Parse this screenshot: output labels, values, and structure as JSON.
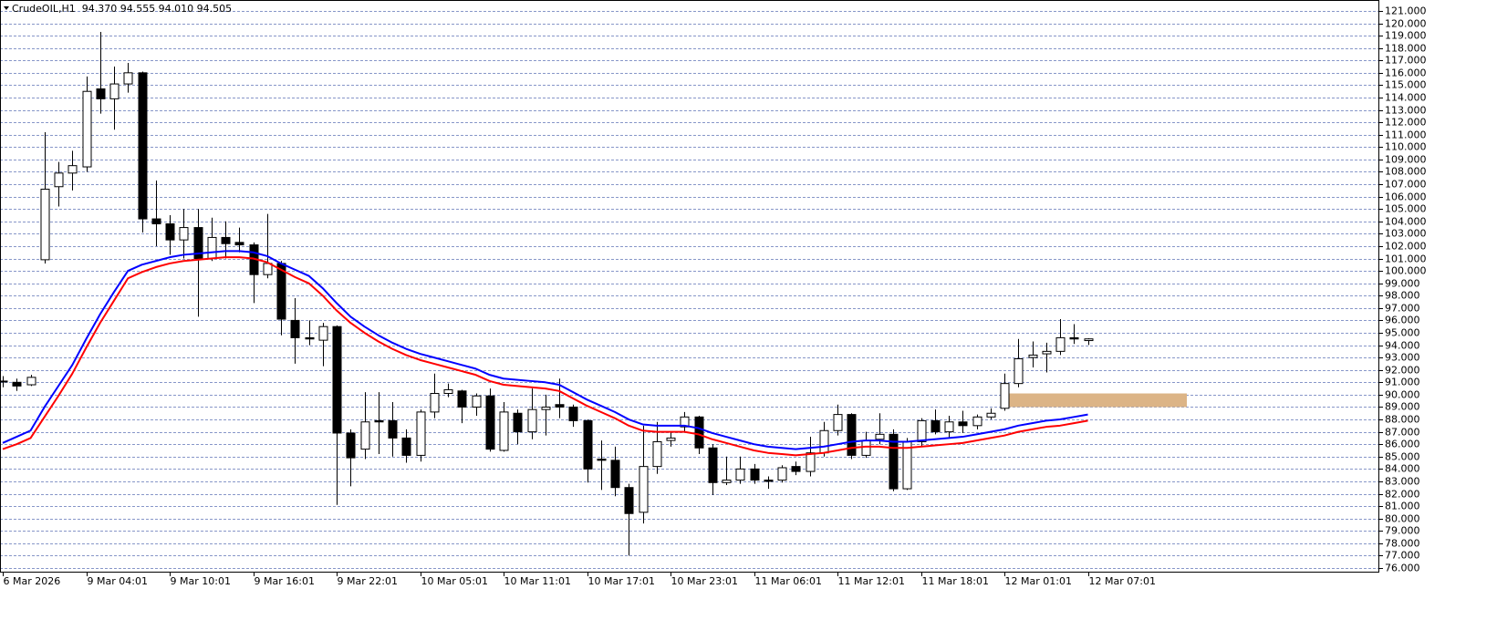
{
  "chart_data": {
    "type": "candlestick",
    "title": "CrudeOIL,H1  94.370 94.555 94.010 94.505",
    "categories": [
      "6 Mar 2026",
      null,
      null,
      null,
      null,
      null,
      "9 Mar 04:01",
      null,
      null,
      null,
      null,
      null,
      "9 Mar 10:01",
      null,
      null,
      null,
      null,
      null,
      "9 Mar 16:01",
      null,
      null,
      null,
      null,
      null,
      "9 Mar 22:01",
      null,
      null,
      null,
      null,
      null,
      "10 Mar 05:01",
      null,
      null,
      null,
      null,
      null,
      "10 Mar 11:01",
      null,
      null,
      null,
      null,
      null,
      "10 Mar 17:01",
      null,
      null,
      null,
      null,
      null,
      "10 Mar 23:01",
      null,
      null,
      null,
      null,
      null,
      "11 Mar 06:01",
      null,
      null,
      null,
      null,
      null,
      "11 Mar 12:01",
      null,
      null,
      null,
      null,
      null,
      "11 Mar 18:01",
      null,
      null,
      null,
      null,
      null,
      "12 Mar 01:01",
      null,
      null,
      null,
      null,
      null,
      "12 Mar 07:01"
    ],
    "open": [
      91.1,
      91.0,
      90.8,
      100.9,
      106.8,
      107.9,
      108.4,
      114.7,
      113.9,
      115.1,
      116.0,
      104.2,
      103.8,
      102.5,
      103.5,
      101.0,
      102.7,
      102.3,
      102.1,
      99.7,
      100.6,
      96.0,
      94.6,
      94.4,
      95.5,
      86.9,
      85.6,
      87.9,
      87.9,
      86.5,
      85.1,
      88.6,
      90.1,
      90.3,
      89.0,
      89.9,
      85.5,
      88.5,
      87.0,
      88.8,
      89.2,
      89.0,
      87.9,
      84.8,
      84.7,
      82.5,
      80.5,
      84.2,
      86.3,
      87.4,
      88.2,
      85.7,
      82.9,
      83.1,
      84.0,
      83.1,
      83.1,
      84.2,
      83.8,
      85.3,
      87.1,
      88.4,
      85.1,
      86.4,
      86.8,
      82.4,
      86.2,
      87.9,
      87.0,
      87.8,
      87.5,
      88.2,
      88.9,
      90.9,
      93.0,
      93.3,
      93.5,
      94.6,
      94.37
    ],
    "high": [
      91.5,
      91.3,
      91.6,
      111.2,
      108.8,
      109.7,
      115.7,
      119.3,
      116.5,
      116.8,
      116.1,
      107.3,
      104.5,
      105.0,
      105.0,
      104.3,
      104.0,
      103.5,
      102.3,
      104.6,
      100.8,
      97.8,
      96.0,
      95.8,
      95.6,
      87.2,
      90.2,
      90.2,
      89.4,
      87.2,
      88.8,
      91.7,
      90.9,
      90.4,
      90.1,
      90.5,
      89.4,
      88.8,
      90.5,
      90.0,
      91.3,
      89.2,
      88.0,
      86.3,
      85.8,
      82.8,
      87.5,
      87.8,
      87.0,
      88.6,
      88.3,
      86.0,
      85.0,
      85.0,
      84.4,
      83.4,
      84.3,
      84.6,
      86.6,
      87.8,
      89.2,
      88.5,
      87.0,
      88.5,
      87.2,
      86.5,
      88.1,
      88.8,
      88.3,
      88.7,
      88.4,
      88.9,
      91.7,
      94.5,
      94.3,
      94.2,
      96.1,
      95.7,
      94.555
    ],
    "low": [
      90.6,
      90.3,
      90.7,
      100.6,
      105.2,
      106.5,
      108.0,
      112.7,
      111.4,
      114.4,
      103.1,
      102.0,
      101.3,
      101.0,
      96.3,
      100.8,
      101.0,
      101.5,
      97.4,
      99.4,
      94.8,
      92.5,
      94.0,
      92.3,
      81.1,
      82.6,
      84.8,
      85.2,
      85.0,
      84.5,
      84.6,
      88.1,
      89.8,
      87.7,
      88.3,
      85.4,
      85.4,
      86.0,
      86.4,
      86.7,
      88.1,
      87.4,
      82.9,
      82.3,
      81.8,
      77.0,
      79.6,
      83.6,
      85.8,
      87.0,
      85.2,
      81.9,
      82.7,
      82.8,
      82.8,
      82.4,
      82.9,
      83.5,
      83.4,
      85.0,
      86.7,
      84.8,
      84.9,
      86.0,
      82.2,
      82.3,
      85.8,
      86.8,
      86.5,
      86.9,
      87.2,
      88.0,
      88.7,
      90.6,
      92.2,
      91.8,
      93.2,
      94.1,
      94.01
    ],
    "close": [
      91.1,
      90.7,
      91.4,
      106.6,
      107.9,
      108.5,
      114.5,
      113.9,
      115.1,
      116.0,
      104.2,
      103.8,
      102.5,
      103.5,
      101.0,
      102.7,
      102.2,
      102.1,
      99.7,
      100.6,
      96.1,
      94.6,
      94.5,
      95.5,
      86.9,
      84.9,
      87.8,
      87.8,
      86.5,
      85.1,
      88.6,
      90.1,
      90.4,
      89.0,
      89.9,
      85.6,
      88.6,
      87.0,
      88.8,
      89.0,
      89.0,
      87.9,
      84.0,
      84.7,
      82.5,
      80.4,
      84.2,
      86.2,
      86.5,
      88.2,
      85.7,
      82.9,
      83.1,
      84.0,
      83.1,
      83.0,
      84.1,
      83.8,
      85.3,
      87.1,
      88.4,
      85.1,
      86.3,
      86.8,
      82.4,
      86.2,
      87.9,
      87.0,
      87.8,
      87.5,
      88.2,
      88.5,
      90.9,
      92.9,
      93.2,
      93.5,
      94.6,
      94.5,
      94.505
    ],
    "up_color": "#ffffff",
    "down_color": "#000000",
    "series": [
      {
        "color": "#0000ff",
        "values": [
          86.1,
          86.6,
          87.1,
          89.0,
          90.7,
          92.4,
          94.5,
          96.5,
          98.3,
          100.0,
          100.5,
          100.8,
          101.1,
          101.3,
          101.4,
          101.5,
          101.6,
          101.6,
          101.5,
          101.2,
          100.6,
          100.1,
          99.6,
          98.6,
          97.4,
          96.3,
          95.5,
          94.8,
          94.2,
          93.7,
          93.3,
          93.0,
          92.7,
          92.4,
          92.1,
          91.6,
          91.3,
          91.2,
          91.1,
          91.0,
          90.8,
          90.2,
          89.6,
          89.1,
          88.6,
          88.0,
          87.6,
          87.5,
          87.5,
          87.5,
          87.3,
          86.9,
          86.6,
          86.3,
          86.0,
          85.8,
          85.7,
          85.6,
          85.7,
          85.8,
          86.0,
          86.2,
          86.3,
          86.3,
          86.2,
          86.2,
          86.3,
          86.4,
          86.5,
          86.6,
          86.8,
          87.0,
          87.2,
          87.5,
          87.7,
          87.9,
          88.0,
          88.2,
          88.4
        ]
      },
      {
        "color": "#ff0000",
        "values": [
          85.6,
          86.0,
          86.5,
          88.2,
          89.9,
          91.7,
          93.8,
          95.8,
          97.6,
          99.4,
          99.9,
          100.3,
          100.6,
          100.8,
          100.9,
          101.0,
          101.1,
          101.1,
          101.0,
          100.7,
          100.1,
          99.5,
          99.0,
          98.0,
          96.8,
          95.8,
          95.0,
          94.3,
          93.7,
          93.2,
          92.8,
          92.5,
          92.2,
          91.9,
          91.6,
          91.1,
          90.8,
          90.7,
          90.6,
          90.5,
          90.3,
          89.7,
          89.1,
          88.6,
          88.1,
          87.5,
          87.1,
          87.0,
          87.0,
          87.0,
          86.8,
          86.4,
          86.1,
          85.8,
          85.5,
          85.3,
          85.2,
          85.1,
          85.2,
          85.3,
          85.5,
          85.7,
          85.8,
          85.8,
          85.7,
          85.7,
          85.8,
          85.9,
          86.0,
          86.1,
          86.3,
          86.5,
          86.7,
          87.0,
          87.2,
          87.4,
          87.5,
          87.7,
          87.9
        ]
      }
    ],
    "zone": {
      "ylim": [
        89.0,
        90.1
      ],
      "color": "#dcb486"
    },
    "ylim": [
      75.63,
      121.88
    ],
    "yticks": [
      {
        "value": 76,
        "label": "76.000"
      },
      {
        "value": 77,
        "label": "77.000"
      },
      {
        "value": 78,
        "label": "78.000"
      },
      {
        "value": 79,
        "label": "79.000"
      },
      {
        "value": 80,
        "label": "80.000"
      },
      {
        "value": 81,
        "label": "81.000"
      },
      {
        "value": 82,
        "label": "82.000"
      },
      {
        "value": 83,
        "label": "83.000"
      },
      {
        "value": 84,
        "label": "84.000"
      },
      {
        "value": 85,
        "label": "85.000"
      },
      {
        "value": 86,
        "label": "86.000"
      },
      {
        "value": 87,
        "label": "87.000"
      },
      {
        "value": 88,
        "label": "88.000"
      },
      {
        "value": 89,
        "label": "89.000"
      },
      {
        "value": 90,
        "label": "90.000"
      },
      {
        "value": 91,
        "label": "91.000"
      },
      {
        "value": 92,
        "label": "92.000"
      },
      {
        "value": 93,
        "label": "93.000"
      },
      {
        "value": 94,
        "label": "94.000"
      },
      {
        "value": 95,
        "label": "95.000"
      },
      {
        "value": 96,
        "label": "96.000"
      },
      {
        "value": 97,
        "label": "97.000"
      },
      {
        "value": 98,
        "label": "98.000"
      },
      {
        "value": 99,
        "label": "99.000"
      },
      {
        "value": 100,
        "label": "100.000"
      },
      {
        "value": 101,
        "label": "101.000"
      },
      {
        "value": 102,
        "label": "102.000"
      },
      {
        "value": 103,
        "label": "103.000"
      },
      {
        "value": 104,
        "label": "104.000"
      },
      {
        "value": 105,
        "label": "105.000"
      },
      {
        "value": 106,
        "label": "106.000"
      },
      {
        "value": 107,
        "label": "107.000"
      },
      {
        "value": 108,
        "label": "108.000"
      },
      {
        "value": 109,
        "label": "109.000"
      },
      {
        "value": 110,
        "label": "110.000"
      },
      {
        "value": 111,
        "label": "111.000"
      },
      {
        "value": 112,
        "label": "112.000"
      },
      {
        "value": 113,
        "label": "113.000"
      },
      {
        "value": 114,
        "label": "114.000"
      },
      {
        "value": 115,
        "label": "115.000"
      },
      {
        "value": 116,
        "label": "116.000"
      },
      {
        "value": 117,
        "label": "117.000"
      },
      {
        "value": 118,
        "label": "118.000"
      },
      {
        "value": 119,
        "label": "119.000"
      },
      {
        "value": 120,
        "label": "120.000"
      },
      {
        "value": 121,
        "label": "121.000"
      }
    ],
    "grid": true,
    "grid_color": "#8796c8"
  }
}
